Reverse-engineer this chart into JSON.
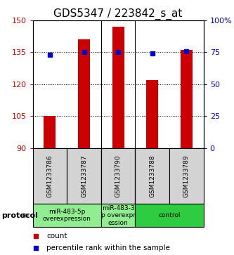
{
  "title": "GDS5347 / 223842_s_at",
  "samples": [
    "GSM1233786",
    "GSM1233787",
    "GSM1233790",
    "GSM1233788",
    "GSM1233789"
  ],
  "counts": [
    105,
    141,
    147,
    122,
    136
  ],
  "percentiles": [
    73,
    75.5,
    75.5,
    74,
    76
  ],
  "ylim_left": [
    90,
    150
  ],
  "ylim_right": [
    0,
    100
  ],
  "yticks_left": [
    90,
    105,
    120,
    135,
    150
  ],
  "yticks_right": [
    0,
    25,
    50,
    75,
    100
  ],
  "ytick_labels_right": [
    "0",
    "25",
    "50",
    "75",
    "100%"
  ],
  "bar_color": "#cc0000",
  "dot_color": "#0000cc",
  "group_defs": [
    {
      "indices": [
        0,
        1
      ],
      "label": "miR-483-5p\noverexpression",
      "color": "#90ee90"
    },
    {
      "indices": [
        2
      ],
      "label": "miR-483-3\np overexpr\nession",
      "color": "#90ee90"
    },
    {
      "indices": [
        3,
        4
      ],
      "label": "control",
      "color": "#2ecc40"
    }
  ],
  "protocol_label": "protocol",
  "legend_count_label": "count",
  "legend_pct_label": "percentile rank within the sample",
  "title_fontsize": 11,
  "tick_fontsize": 8,
  "bar_width": 0.35,
  "sample_label_fontsize": 6.5,
  "group_label_fontsize": 6.5
}
